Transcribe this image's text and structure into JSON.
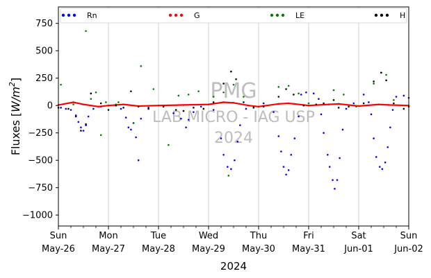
{
  "chart_data": {
    "type": "scatter",
    "title": "",
    "xlabel": "2024",
    "ylabel": "Fluxes [W/m²]",
    "ylabel_main": "Fluxes [",
    "ylabel_unit": "W/m",
    "ylabel_exp": "2",
    "ylabel_close": "]",
    "ylim": [
      -1100,
      900
    ],
    "xlim": [
      0,
      7
    ],
    "grid": "vertical at day boundaries",
    "legend_position": "top",
    "yticks": [
      "750",
      "500",
      "250",
      "0",
      "−250",
      "−500",
      "−750",
      "−1000"
    ],
    "ytick_values": [
      750,
      500,
      250,
      0,
      -250,
      -500,
      -750,
      -1000
    ],
    "xticks": [
      {
        "day": "Sun",
        "date": "May-26",
        "x": 0
      },
      {
        "day": "Mon",
        "date": "May-27",
        "x": 1
      },
      {
        "day": "Tue",
        "date": "May-28",
        "x": 2
      },
      {
        "day": "Wed",
        "date": "May-29",
        "x": 3
      },
      {
        "day": "Thu",
        "date": "May-30",
        "x": 4
      },
      {
        "day": "Fri",
        "date": "May-31",
        "x": 5
      },
      {
        "day": "Sat",
        "date": "Jun-01",
        "x": 6
      },
      {
        "day": "Sun",
        "date": "Jun-02",
        "x": 7
      }
    ],
    "watermark": [
      "PMG",
      "LAB MICRO - IAG USP",
      "2024"
    ],
    "series": [
      {
        "name": "Rn",
        "color": "#0000ff",
        "points": [
          [
            0.05,
            -20
          ],
          [
            0.15,
            -30
          ],
          [
            0.25,
            -40
          ],
          [
            0.35,
            -90
          ],
          [
            0.4,
            -150
          ],
          [
            0.45,
            -200
          ],
          [
            0.5,
            -230
          ],
          [
            0.55,
            -180
          ],
          [
            0.6,
            -100
          ],
          [
            0.7,
            -30
          ],
          [
            0.85,
            -10
          ],
          [
            1.0,
            0
          ],
          [
            1.25,
            -30
          ],
          [
            1.35,
            -110
          ],
          [
            1.4,
            -200
          ],
          [
            1.45,
            -220
          ],
          [
            1.5,
            -160
          ],
          [
            1.55,
            -290
          ],
          [
            1.6,
            -500
          ],
          [
            1.65,
            -120
          ],
          [
            1.8,
            -20
          ],
          [
            2.1,
            -10
          ],
          [
            2.3,
            -70
          ],
          [
            2.45,
            -120
          ],
          [
            2.55,
            -200
          ],
          [
            2.6,
            -130
          ],
          [
            2.7,
            -60
          ],
          [
            2.85,
            -10
          ],
          [
            3.1,
            -40
          ],
          [
            3.25,
            -300
          ],
          [
            3.3,
            -450
          ],
          [
            3.38,
            -560
          ],
          [
            3.45,
            -580
          ],
          [
            3.52,
            -500
          ],
          [
            3.58,
            -330
          ],
          [
            3.63,
            -180
          ],
          [
            3.75,
            -30
          ],
          [
            3.9,
            -10
          ],
          [
            4.1,
            20
          ],
          [
            4.3,
            -60
          ],
          [
            4.4,
            -280
          ],
          [
            4.45,
            -420
          ],
          [
            4.5,
            -560
          ],
          [
            4.55,
            -630
          ],
          [
            4.6,
            -590
          ],
          [
            4.65,
            -450
          ],
          [
            4.72,
            -300
          ],
          [
            4.8,
            -100
          ],
          [
            4.85,
            100
          ],
          [
            4.95,
            120
          ],
          [
            5.1,
            110
          ],
          [
            5.2,
            60
          ],
          [
            5.25,
            -80
          ],
          [
            5.3,
            -250
          ],
          [
            5.38,
            -450
          ],
          [
            5.42,
            -560
          ],
          [
            5.48,
            -680
          ],
          [
            5.52,
            -760
          ],
          [
            5.57,
            -680
          ],
          [
            5.62,
            -480
          ],
          [
            5.68,
            -220
          ],
          [
            5.75,
            -30
          ],
          [
            5.9,
            20
          ],
          [
            6.1,
            100
          ],
          [
            6.2,
            30
          ],
          [
            6.25,
            -80
          ],
          [
            6.3,
            -300
          ],
          [
            6.35,
            -470
          ],
          [
            6.42,
            -560
          ],
          [
            6.47,
            -580
          ],
          [
            6.53,
            -520
          ],
          [
            6.58,
            -380
          ],
          [
            6.63,
            -200
          ],
          [
            6.68,
            -40
          ],
          [
            6.75,
            80
          ],
          [
            6.9,
            90
          ],
          [
            7.0,
            70
          ]
        ]
      },
      {
        "name": "G",
        "color": "#ff0000",
        "points": [
          [
            0.0,
            5
          ],
          [
            0.3,
            30
          ],
          [
            0.5,
            10
          ],
          [
            0.8,
            -10
          ],
          [
            1.0,
            0
          ],
          [
            1.3,
            10
          ],
          [
            1.6,
            -5
          ],
          [
            2.0,
            0
          ],
          [
            2.5,
            5
          ],
          [
            3.0,
            10
          ],
          [
            3.3,
            30
          ],
          [
            3.5,
            25
          ],
          [
            3.8,
            0
          ],
          [
            4.0,
            -10
          ],
          [
            4.4,
            15
          ],
          [
            4.6,
            20
          ],
          [
            5.0,
            0
          ],
          [
            5.4,
            10
          ],
          [
            5.6,
            15
          ],
          [
            6.0,
            -5
          ],
          [
            6.4,
            10
          ],
          [
            6.6,
            5
          ],
          [
            7.0,
            0
          ]
        ]
      },
      {
        "name": "LE",
        "color": "#008000",
        "points": [
          [
            0.05,
            190
          ],
          [
            0.3,
            10
          ],
          [
            0.55,
            680
          ],
          [
            0.65,
            60
          ],
          [
            0.75,
            120
          ],
          [
            0.85,
            -270
          ],
          [
            0.95,
            30
          ],
          [
            1.15,
            10
          ],
          [
            1.2,
            30
          ],
          [
            1.5,
            -160
          ],
          [
            1.65,
            360
          ],
          [
            1.9,
            150
          ],
          [
            2.2,
            -360
          ],
          [
            2.4,
            90
          ],
          [
            2.6,
            100
          ],
          [
            2.8,
            130
          ],
          [
            3.1,
            80
          ],
          [
            3.3,
            120
          ],
          [
            3.5,
            190
          ],
          [
            3.7,
            80
          ],
          [
            4.4,
            170
          ],
          [
            4.6,
            180
          ],
          [
            4.8,
            110
          ],
          [
            5.0,
            20
          ],
          [
            5.5,
            140
          ],
          [
            5.7,
            100
          ],
          [
            5.95,
            -10
          ],
          [
            6.3,
            200
          ],
          [
            6.45,
            300
          ],
          [
            6.55,
            280
          ],
          [
            6.7,
            50
          ],
          [
            3.4,
            -640
          ]
        ]
      },
      {
        "name": "H",
        "color": "#000000",
        "points": [
          [
            0.0,
            -20
          ],
          [
            0.2,
            -30
          ],
          [
            0.35,
            -100
          ],
          [
            0.45,
            -230
          ],
          [
            0.55,
            -170
          ],
          [
            0.65,
            110
          ],
          [
            0.85,
            20
          ],
          [
            1.0,
            -40
          ],
          [
            1.15,
            0
          ],
          [
            1.3,
            -20
          ],
          [
            1.45,
            130
          ],
          [
            1.6,
            -10
          ],
          [
            1.8,
            -30
          ],
          [
            2.1,
            -10
          ],
          [
            2.35,
            -40
          ],
          [
            2.5,
            -50
          ],
          [
            2.7,
            -20
          ],
          [
            2.9,
            -30
          ],
          [
            3.1,
            30
          ],
          [
            3.3,
            200
          ],
          [
            3.45,
            310
          ],
          [
            3.55,
            240
          ],
          [
            3.7,
            30
          ],
          [
            3.9,
            -20
          ],
          [
            4.1,
            -10
          ],
          [
            4.4,
            80
          ],
          [
            4.55,
            150
          ],
          [
            4.7,
            100
          ],
          [
            4.9,
            0
          ],
          [
            5.15,
            10
          ],
          [
            5.3,
            20
          ],
          [
            5.5,
            50
          ],
          [
            5.6,
            -20
          ],
          [
            5.8,
            -10
          ],
          [
            6.1,
            20
          ],
          [
            6.3,
            220
          ],
          [
            6.45,
            300
          ],
          [
            6.55,
            230
          ],
          [
            6.7,
            20
          ],
          [
            6.9,
            -30
          ],
          [
            7.0,
            -10
          ]
        ]
      }
    ]
  }
}
